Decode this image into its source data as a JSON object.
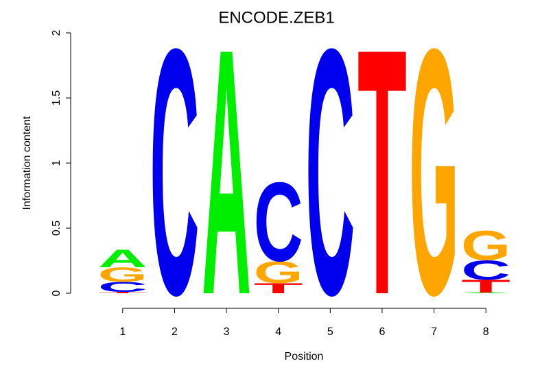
{
  "chart_data": {
    "type": "logo",
    "title": "ENCODE.ZEB1",
    "xlabel": "Position",
    "ylabel": "Information content",
    "x": [
      1,
      2,
      3,
      4,
      5,
      6,
      7,
      8
    ],
    "xlim": [
      0.5,
      8.5
    ],
    "xticks": [
      1,
      2,
      3,
      4,
      5,
      6,
      7,
      8
    ],
    "ylim": [
      0,
      2
    ],
    "yticks": [
      0,
      0.5,
      1,
      1.5,
      2
    ],
    "letter_colors": {
      "A": "#00ee00",
      "C": "#0000ee",
      "G": "#ffa500",
      "T": "#ff0000"
    },
    "stacks": [
      [
        {
          "letter": "T",
          "value": 0.01
        },
        {
          "letter": "C",
          "value": 0.08
        },
        {
          "letter": "G",
          "value": 0.11
        },
        {
          "letter": "A",
          "value": 0.14
        }
      ],
      [
        {
          "letter": "C",
          "value": 1.93
        }
      ],
      [
        {
          "letter": "A",
          "value": 1.93
        }
      ],
      [
        {
          "letter": "T",
          "value": 0.08
        },
        {
          "letter": "G",
          "value": 0.17
        },
        {
          "letter": "C",
          "value": 0.62
        }
      ],
      [
        {
          "letter": "C",
          "value": 1.93
        }
      ],
      [
        {
          "letter": "T",
          "value": 1.93
        }
      ],
      [
        {
          "letter": "G",
          "value": 1.93
        }
      ],
      [
        {
          "letter": "A",
          "value": 0.005
        },
        {
          "letter": "T",
          "value": 0.1
        },
        {
          "letter": "C",
          "value": 0.15
        },
        {
          "letter": "G",
          "value": 0.23
        }
      ]
    ]
  }
}
